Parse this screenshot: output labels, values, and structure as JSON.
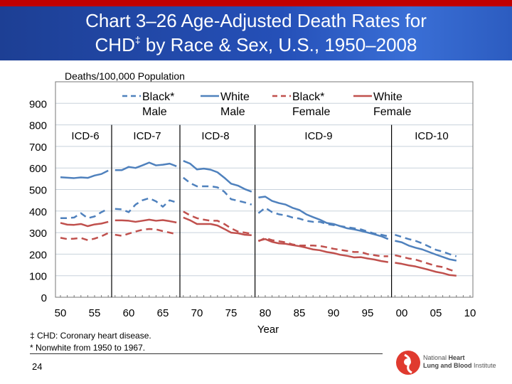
{
  "header": {
    "title_line1": "Chart 3–26 Age-Adjusted Death Rates for",
    "title_line2_pre": "CHD",
    "title_line2_sup": "‡",
    "title_line2_post": " by Race & Sex, U.S., 1950–2008",
    "colors": {
      "top_bar": "#c00000",
      "title_band": "#2550b8"
    }
  },
  "chart_data": {
    "type": "line",
    "title": "Chart 3–26 Age-Adjusted Death Rates for CHD‡ by Race & Sex, U.S., 1950–2008",
    "ylabel": "Deaths/100,000 Population",
    "xlabel": "Year",
    "ylim": [
      0,
      1000
    ],
    "yticks": [
      0,
      100,
      200,
      300,
      400,
      500,
      600,
      700,
      800,
      900
    ],
    "xlim": [
      1949,
      2011
    ],
    "xticks": [
      1950,
      1955,
      1960,
      1965,
      1970,
      1975,
      1980,
      1985,
      1990,
      1995,
      2000,
      2005,
      2010
    ],
    "xtick_labels": [
      "50",
      "55",
      "60",
      "65",
      "70",
      "75",
      "80",
      "85",
      "90",
      "95",
      "00",
      "05",
      "10"
    ],
    "grid": "horizontal",
    "legend_placement": "top",
    "periods": [
      {
        "label": "ICD-6",
        "start": 1950,
        "end": 1957
      },
      {
        "label": "ICD-7",
        "start": 1958,
        "end": 1967
      },
      {
        "label": "ICD-8",
        "start": 1968,
        "end": 1978
      },
      {
        "label": "ICD-9",
        "start": 1979,
        "end": 1998
      },
      {
        "label": "ICD-10",
        "start": 1999,
        "end": 2008
      }
    ],
    "series": [
      {
        "name": "Black* Male",
        "legend1": "Black*",
        "legend2": "Male",
        "color": "#4f81bd",
        "dash": true,
        "values": [
          367,
          367,
          370,
          390,
          367,
          375,
          395,
          410,
          410,
          408,
          395,
          430,
          450,
          460,
          445,
          420,
          450,
          440,
          555,
          530,
          515,
          515,
          515,
          510,
          490,
          455,
          448,
          440,
          430,
          390,
          415,
          395,
          385,
          380,
          370,
          365,
          355,
          350,
          350,
          340,
          335,
          330,
          325,
          320,
          315,
          305,
          295,
          290,
          283,
          290,
          280,
          270,
          262,
          250,
          235,
          220,
          212,
          200,
          190
        ]
      },
      {
        "name": "White Male",
        "legend1": "White",
        "legend2": "Male",
        "color": "#4f81bd",
        "dash": false,
        "values": [
          557,
          555,
          553,
          556,
          554,
          565,
          572,
          588,
          590,
          590,
          605,
          600,
          612,
          625,
          612,
          615,
          620,
          608,
          633,
          620,
          593,
          597,
          592,
          580,
          555,
          527,
          518,
          502,
          490,
          463,
          467,
          447,
          437,
          430,
          415,
          405,
          385,
          372,
          360,
          345,
          340,
          330,
          320,
          315,
          308,
          300,
          292,
          283,
          270,
          262,
          255,
          240,
          230,
          222,
          210,
          198,
          187,
          176,
          170
        ]
      },
      {
        "name": "Black* Female",
        "legend1": "Black*",
        "legend2": "Female",
        "color": "#c0504d",
        "dash": true,
        "values": [
          276,
          270,
          272,
          275,
          265,
          272,
          283,
          298,
          290,
          285,
          295,
          305,
          313,
          317,
          315,
          307,
          300,
          293,
          398,
          380,
          367,
          360,
          355,
          355,
          340,
          320,
          305,
          300,
          295,
          260,
          275,
          265,
          260,
          255,
          245,
          240,
          240,
          240,
          238,
          232,
          225,
          220,
          215,
          210,
          210,
          200,
          195,
          190,
          190,
          195,
          188,
          180,
          175,
          165,
          155,
          145,
          140,
          128,
          118
        ]
      },
      {
        "name": "White Female",
        "legend1": "White",
        "legend2": "Female",
        "color": "#c0504d",
        "dash": false,
        "values": [
          345,
          337,
          336,
          340,
          330,
          338,
          342,
          350,
          357,
          357,
          355,
          350,
          355,
          360,
          355,
          358,
          353,
          347,
          370,
          357,
          340,
          340,
          340,
          333,
          317,
          300,
          297,
          290,
          288,
          262,
          270,
          257,
          250,
          248,
          242,
          237,
          230,
          222,
          218,
          210,
          205,
          197,
          192,
          185,
          186,
          180,
          175,
          168,
          163,
          160,
          155,
          148,
          143,
          135,
          127,
          118,
          112,
          103,
          100
        ]
      }
    ]
  },
  "footnotes": {
    "note1": "‡ CHD: Coronary heart disease.",
    "note2": "* Nonwhite from 1950 to 1967."
  },
  "page_number": "24",
  "logo": {
    "line1_a": "National ",
    "line1_b": "Heart",
    "line2_a": "Lung and Blood",
    "line2_b": " Institute",
    "color": "#e03a2f"
  }
}
